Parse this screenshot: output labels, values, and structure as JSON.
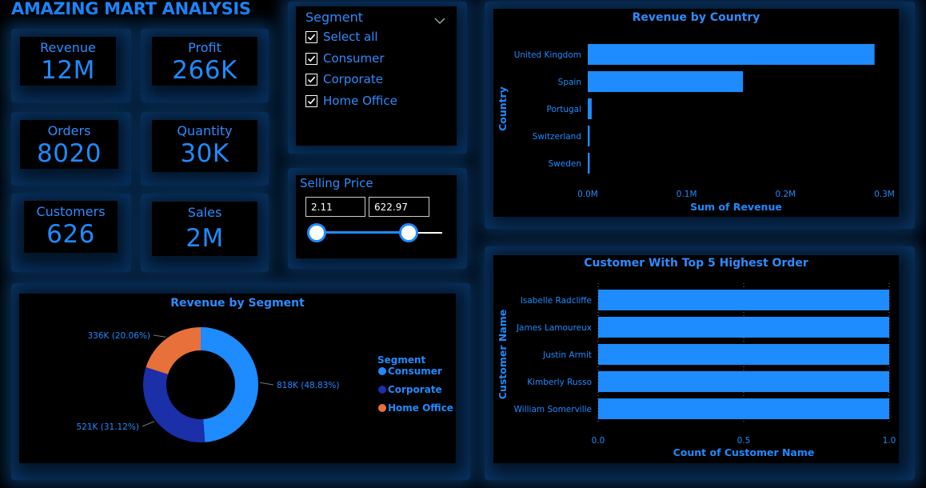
{
  "dashboard": {
    "title": "AMAZING MART ANALYSIS"
  },
  "kpis": {
    "revenue": {
      "label": "Revenue",
      "value": "12M"
    },
    "profit": {
      "label": "Profit",
      "value": "266K"
    },
    "orders": {
      "label": "Orders",
      "value": "8020"
    },
    "quantity": {
      "label": "Quantity",
      "value": "30K"
    },
    "customers": {
      "label": "Customers",
      "value": "626"
    },
    "sales": {
      "label": "Sales",
      "value": "2M"
    }
  },
  "segment_slicer": {
    "title": "Segment",
    "items": [
      {
        "label": "Select all",
        "checked": true
      },
      {
        "label": "Consumer",
        "checked": true
      },
      {
        "label": "Corporate",
        "checked": true
      },
      {
        "label": "Home Office",
        "checked": true
      }
    ],
    "icon": "chevron-down-icon"
  },
  "selling_price": {
    "title": "Selling Price",
    "min": "2.11",
    "max": "622.97",
    "range_fraction_low": 0.0,
    "range_fraction_high": 0.73
  },
  "colors": {
    "accent": "#1e8bff",
    "consumer": "#1e8bff",
    "corporate": "#1a2fa8",
    "home_office": "#e8703b",
    "background": "#000000"
  },
  "chart_data": [
    {
      "type": "bar",
      "orientation": "horizontal",
      "title": "Revenue by Country",
      "xlabel": "Sum of Revenue",
      "ylabel": "Country",
      "categories": [
        "United Kingdom",
        "Spain",
        "Portugal",
        "Switzerland",
        "Sweden"
      ],
      "values": [
        0.29,
        0.157,
        0.004,
        0.002,
        0.002
      ],
      "xlim": [
        0,
        0.3
      ],
      "xticks": [
        "0.0M",
        "0.1M",
        "0.2M",
        "0.3M"
      ]
    },
    {
      "type": "pie",
      "variant": "donut",
      "title": "Revenue by Segment",
      "legend_title": "Segment",
      "legend_position": "right",
      "slices": [
        {
          "name": "Consumer",
          "value": 818,
          "label": "818K (48.83%)",
          "color": "#1e8bff"
        },
        {
          "name": "Corporate",
          "value": 521,
          "label": "521K (31.12%)",
          "color": "#1a2fa8"
        },
        {
          "name": "Home Office",
          "value": 336,
          "label": "336K (20.06%)",
          "color": "#e8703b"
        }
      ]
    },
    {
      "type": "bar",
      "orientation": "horizontal",
      "title": "Customer With Top 5 Highest Order",
      "xlabel": "Count of Customer Name",
      "ylabel": "Customer Name",
      "categories": [
        "Isabelle Radcliffe",
        "James Lamoureux",
        "Justin Armit",
        "Kimberly Russo",
        "William Somerville"
      ],
      "values": [
        1,
        1,
        1,
        1,
        1
      ],
      "xlim": [
        0,
        1
      ],
      "xticks": [
        "0.0",
        "0.5",
        "1.0"
      ]
    }
  ]
}
